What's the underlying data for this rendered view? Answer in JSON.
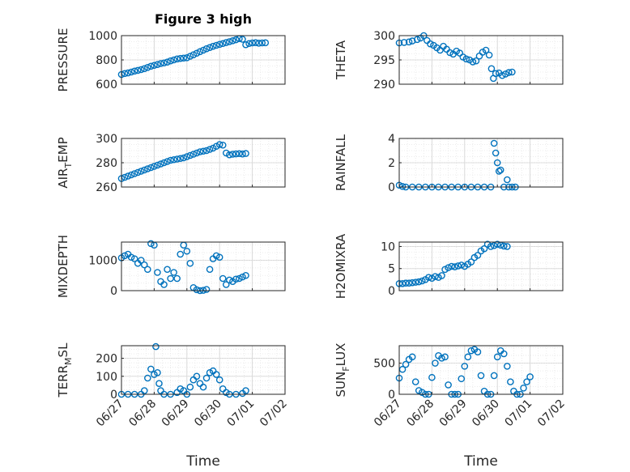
{
  "figure": {
    "title": "Figure 3 high"
  },
  "colors": {
    "marker": "#0072BD",
    "grid": "#d9d9d9",
    "axis": "#262626"
  },
  "x_axis": {
    "label": "Time",
    "range": [
      "06/27",
      "07/02"
    ],
    "ticks": [
      "06/27",
      "06/28",
      "06/29",
      "06/30",
      "07/01",
      "07/02"
    ]
  },
  "chart_data": [
    {
      "type": "scatter",
      "ylabel": "PRESSURE",
      "ylim": [
        600,
        1000
      ],
      "yticks": [
        600,
        800,
        1000
      ],
      "grid": true,
      "x": [
        "06/27",
        "06/28",
        "06/29",
        "06/30",
        "07/01",
        "07/02"
      ],
      "points": [
        [
          0,
          680
        ],
        [
          0.1,
          688
        ],
        [
          0.2,
          693
        ],
        [
          0.3,
          700
        ],
        [
          0.4,
          708
        ],
        [
          0.5,
          714
        ],
        [
          0.6,
          720
        ],
        [
          0.7,
          728
        ],
        [
          0.8,
          738
        ],
        [
          0.9,
          748
        ],
        [
          1.0,
          755
        ],
        [
          1.1,
          762
        ],
        [
          1.2,
          770
        ],
        [
          1.3,
          775
        ],
        [
          1.4,
          782
        ],
        [
          1.5,
          792
        ],
        [
          1.6,
          800
        ],
        [
          1.7,
          808
        ],
        [
          1.8,
          812
        ],
        [
          1.9,
          815
        ],
        [
          2.0,
          818
        ],
        [
          2.1,
          830
        ],
        [
          2.2,
          842
        ],
        [
          2.3,
          855
        ],
        [
          2.4,
          868
        ],
        [
          2.5,
          880
        ],
        [
          2.6,
          892
        ],
        [
          2.7,
          902
        ],
        [
          2.8,
          912
        ],
        [
          2.9,
          920
        ],
        [
          3.0,
          928
        ],
        [
          3.1,
          935
        ],
        [
          3.2,
          943
        ],
        [
          3.3,
          950
        ],
        [
          3.4,
          958
        ],
        [
          3.5,
          966
        ],
        [
          3.6,
          975
        ],
        [
          3.7,
          970
        ],
        [
          3.8,
          925
        ],
        [
          3.9,
          935
        ],
        [
          4.0,
          940
        ],
        [
          4.1,
          942
        ],
        [
          4.2,
          938
        ],
        [
          4.3,
          940
        ],
        [
          4.4,
          941
        ]
      ]
    },
    {
      "type": "scatter",
      "ylabel": "THETA",
      "ylim": [
        290,
        300
      ],
      "yticks": [
        290,
        295,
        300
      ],
      "grid": true,
      "points": [
        [
          0,
          298.5
        ],
        [
          0.15,
          298.6
        ],
        [
          0.3,
          298.7
        ],
        [
          0.4,
          298.9
        ],
        [
          0.55,
          299.2
        ],
        [
          0.65,
          299.5
        ],
        [
          0.75,
          300.0
        ],
        [
          0.85,
          299.0
        ],
        [
          0.95,
          298.3
        ],
        [
          1.05,
          298.0
        ],
        [
          1.15,
          297.5
        ],
        [
          1.25,
          297.0
        ],
        [
          1.35,
          297.8
        ],
        [
          1.45,
          297.2
        ],
        [
          1.55,
          296.5
        ],
        [
          1.65,
          296.2
        ],
        [
          1.75,
          296.8
        ],
        [
          1.85,
          296.4
        ],
        [
          1.95,
          295.6
        ],
        [
          2.05,
          295.2
        ],
        [
          2.15,
          295.0
        ],
        [
          2.25,
          294.6
        ],
        [
          2.35,
          294.8
        ],
        [
          2.45,
          295.8
        ],
        [
          2.55,
          296.6
        ],
        [
          2.65,
          297.0
        ],
        [
          2.75,
          296.0
        ],
        [
          2.82,
          293.2
        ],
        [
          2.88,
          291.2
        ],
        [
          2.95,
          292.2
        ],
        [
          3.05,
          292.3
        ],
        [
          3.15,
          291.8
        ],
        [
          3.25,
          292.1
        ],
        [
          3.35,
          292.4
        ],
        [
          3.45,
          292.5
        ]
      ]
    },
    {
      "type": "scatter",
      "ylabel": "AIR",
      "ylabel_sub": "T",
      "ylabel_tail": "EMP",
      "ylim": [
        260,
        300
      ],
      "yticks": [
        260,
        280,
        300
      ],
      "grid": true,
      "points": [
        [
          0,
          267
        ],
        [
          0.1,
          268
        ],
        [
          0.2,
          269
        ],
        [
          0.3,
          270
        ],
        [
          0.4,
          271
        ],
        [
          0.5,
          272
        ],
        [
          0.6,
          273
        ],
        [
          0.7,
          274
        ],
        [
          0.8,
          275
        ],
        [
          0.9,
          276
        ],
        [
          1.0,
          277
        ],
        [
          1.1,
          278
        ],
        [
          1.2,
          279
        ],
        [
          1.3,
          280
        ],
        [
          1.4,
          281
        ],
        [
          1.5,
          282
        ],
        [
          1.6,
          282.5
        ],
        [
          1.7,
          283
        ],
        [
          1.8,
          283.5
        ],
        [
          1.9,
          284
        ],
        [
          2.0,
          285
        ],
        [
          2.1,
          286
        ],
        [
          2.2,
          287
        ],
        [
          2.3,
          288
        ],
        [
          2.4,
          289
        ],
        [
          2.5,
          289.5
        ],
        [
          2.6,
          290
        ],
        [
          2.7,
          291
        ],
        [
          2.8,
          292
        ],
        [
          2.9,
          293.5
        ],
        [
          3.0,
          295
        ],
        [
          3.1,
          294.5
        ],
        [
          3.2,
          288
        ],
        [
          3.3,
          286.5
        ],
        [
          3.4,
          287
        ],
        [
          3.5,
          287.3
        ],
        [
          3.6,
          287.5
        ],
        [
          3.7,
          287.2
        ],
        [
          3.8,
          287.6
        ]
      ]
    },
    {
      "type": "scatter",
      "ylabel": "RAINFALL",
      "ylim": [
        0,
        4
      ],
      "yticks": [
        0,
        2,
        4
      ],
      "grid": true,
      "points": [
        [
          0,
          0.15
        ],
        [
          0.1,
          0.05
        ],
        [
          0.2,
          0
        ],
        [
          0.4,
          0
        ],
        [
          0.6,
          0
        ],
        [
          0.8,
          0
        ],
        [
          1.0,
          0
        ],
        [
          1.2,
          0
        ],
        [
          1.4,
          0
        ],
        [
          1.6,
          0
        ],
        [
          1.8,
          0
        ],
        [
          2.0,
          0
        ],
        [
          2.2,
          0
        ],
        [
          2.4,
          0
        ],
        [
          2.6,
          0
        ],
        [
          2.8,
          0
        ],
        [
          2.9,
          3.6
        ],
        [
          2.95,
          2.8
        ],
        [
          3.0,
          2.0
        ],
        [
          3.05,
          1.3
        ],
        [
          3.1,
          1.4
        ],
        [
          3.2,
          0
        ],
        [
          3.3,
          0.6
        ],
        [
          3.35,
          0
        ],
        [
          3.45,
          0
        ],
        [
          3.55,
          0
        ]
      ]
    },
    {
      "type": "scatter",
      "ylabel": "MIXDEPTH",
      "ylim": [
        0,
        1600
      ],
      "yticks": [
        0,
        1000
      ],
      "grid": true,
      "points": [
        [
          0,
          1080
        ],
        [
          0.1,
          1150
        ],
        [
          0.2,
          1200
        ],
        [
          0.3,
          1100
        ],
        [
          0.4,
          1050
        ],
        [
          0.5,
          900
        ],
        [
          0.6,
          1000
        ],
        [
          0.7,
          850
        ],
        [
          0.8,
          700
        ],
        [
          0.9,
          1550
        ],
        [
          1.0,
          1500
        ],
        [
          1.1,
          600
        ],
        [
          1.2,
          300
        ],
        [
          1.3,
          200
        ],
        [
          1.4,
          700
        ],
        [
          1.5,
          400
        ],
        [
          1.6,
          600
        ],
        [
          1.7,
          400
        ],
        [
          1.8,
          1200
        ],
        [
          1.9,
          1500
        ],
        [
          2.0,
          1300
        ],
        [
          2.1,
          900
        ],
        [
          2.2,
          100
        ],
        [
          2.3,
          30
        ],
        [
          2.4,
          0
        ],
        [
          2.5,
          10
        ],
        [
          2.6,
          40
        ],
        [
          2.7,
          700
        ],
        [
          2.8,
          1050
        ],
        [
          2.9,
          1150
        ],
        [
          3.0,
          1100
        ],
        [
          3.1,
          400
        ],
        [
          3.2,
          200
        ],
        [
          3.3,
          350
        ],
        [
          3.4,
          300
        ],
        [
          3.5,
          380
        ],
        [
          3.6,
          400
        ],
        [
          3.7,
          450
        ],
        [
          3.8,
          500
        ]
      ]
    },
    {
      "type": "scatter",
      "ylabel": "H2OMIXRA",
      "ylim": [
        0,
        11
      ],
      "yticks": [
        0,
        5,
        10
      ],
      "grid": true,
      "points": [
        [
          0,
          1.6
        ],
        [
          0.1,
          1.6
        ],
        [
          0.2,
          1.7
        ],
        [
          0.3,
          1.7
        ],
        [
          0.4,
          1.8
        ],
        [
          0.5,
          1.9
        ],
        [
          0.6,
          2.0
        ],
        [
          0.7,
          2.2
        ],
        [
          0.8,
          2.5
        ],
        [
          0.9,
          3.0
        ],
        [
          1.0,
          2.8
        ],
        [
          1.1,
          3.2
        ],
        [
          1.2,
          3.0
        ],
        [
          1.3,
          3.4
        ],
        [
          1.4,
          4.8
        ],
        [
          1.5,
          5.2
        ],
        [
          1.6,
          5.5
        ],
        [
          1.7,
          5.4
        ],
        [
          1.8,
          5.6
        ],
        [
          1.9,
          5.8
        ],
        [
          2.0,
          5.5
        ],
        [
          2.1,
          6.0
        ],
        [
          2.2,
          6.5
        ],
        [
          2.3,
          7.5
        ],
        [
          2.4,
          8.0
        ],
        [
          2.5,
          9.0
        ],
        [
          2.6,
          9.5
        ],
        [
          2.7,
          10.5
        ],
        [
          2.8,
          10.0
        ],
        [
          2.9,
          10.2
        ],
        [
          3.0,
          10.5
        ],
        [
          3.1,
          10.3
        ],
        [
          3.2,
          10.1
        ],
        [
          3.3,
          10.0
        ]
      ]
    },
    {
      "type": "scatter",
      "ylabel": "TERR",
      "ylabel_sub": "M",
      "ylabel_tail": "SL",
      "ylim": [
        0,
        270
      ],
      "yticks": [
        0,
        100,
        200
      ],
      "grid": true,
      "points": [
        [
          0,
          0
        ],
        [
          0.2,
          0
        ],
        [
          0.4,
          0
        ],
        [
          0.6,
          0
        ],
        [
          0.7,
          20
        ],
        [
          0.8,
          90
        ],
        [
          0.9,
          140
        ],
        [
          1.0,
          110
        ],
        [
          1.05,
          265
        ],
        [
          1.1,
          120
        ],
        [
          1.15,
          60
        ],
        [
          1.2,
          20
        ],
        [
          1.3,
          0
        ],
        [
          1.5,
          0
        ],
        [
          1.7,
          10
        ],
        [
          1.8,
          30
        ],
        [
          1.9,
          20
        ],
        [
          2.0,
          0
        ],
        [
          2.1,
          40
        ],
        [
          2.2,
          80
        ],
        [
          2.3,
          100
        ],
        [
          2.4,
          60
        ],
        [
          2.5,
          40
        ],
        [
          2.6,
          90
        ],
        [
          2.7,
          120
        ],
        [
          2.8,
          130
        ],
        [
          2.9,
          110
        ],
        [
          3.0,
          80
        ],
        [
          3.1,
          30
        ],
        [
          3.2,
          10
        ],
        [
          3.3,
          0
        ],
        [
          3.5,
          0
        ],
        [
          3.7,
          5
        ],
        [
          3.8,
          20
        ]
      ]
    },
    {
      "type": "scatter",
      "ylabel": "SUN",
      "ylabel_sub": "F",
      "ylabel_tail": "LUX",
      "ylim": [
        0,
        780
      ],
      "yticks": [
        0,
        500
      ],
      "grid": true,
      "points": [
        [
          0,
          260
        ],
        [
          0.1,
          400
        ],
        [
          0.2,
          480
        ],
        [
          0.3,
          560
        ],
        [
          0.4,
          600
        ],
        [
          0.5,
          200
        ],
        [
          0.6,
          60
        ],
        [
          0.7,
          30
        ],
        [
          0.8,
          0
        ],
        [
          0.9,
          0
        ],
        [
          1.0,
          270
        ],
        [
          1.1,
          500
        ],
        [
          1.2,
          620
        ],
        [
          1.3,
          580
        ],
        [
          1.4,
          600
        ],
        [
          1.5,
          150
        ],
        [
          1.6,
          0
        ],
        [
          1.7,
          0
        ],
        [
          1.8,
          0
        ],
        [
          1.9,
          250
        ],
        [
          2.0,
          450
        ],
        [
          2.1,
          600
        ],
        [
          2.2,
          700
        ],
        [
          2.3,
          720
        ],
        [
          2.4,
          680
        ],
        [
          2.5,
          300
        ],
        [
          2.6,
          50
        ],
        [
          2.7,
          0
        ],
        [
          2.8,
          0
        ],
        [
          2.9,
          300
        ],
        [
          3.0,
          600
        ],
        [
          3.1,
          700
        ],
        [
          3.2,
          650
        ],
        [
          3.3,
          450
        ],
        [
          3.4,
          200
        ],
        [
          3.5,
          50
        ],
        [
          3.6,
          0
        ],
        [
          3.7,
          0
        ],
        [
          3.8,
          100
        ],
        [
          3.9,
          200
        ],
        [
          4.0,
          280
        ]
      ]
    }
  ]
}
